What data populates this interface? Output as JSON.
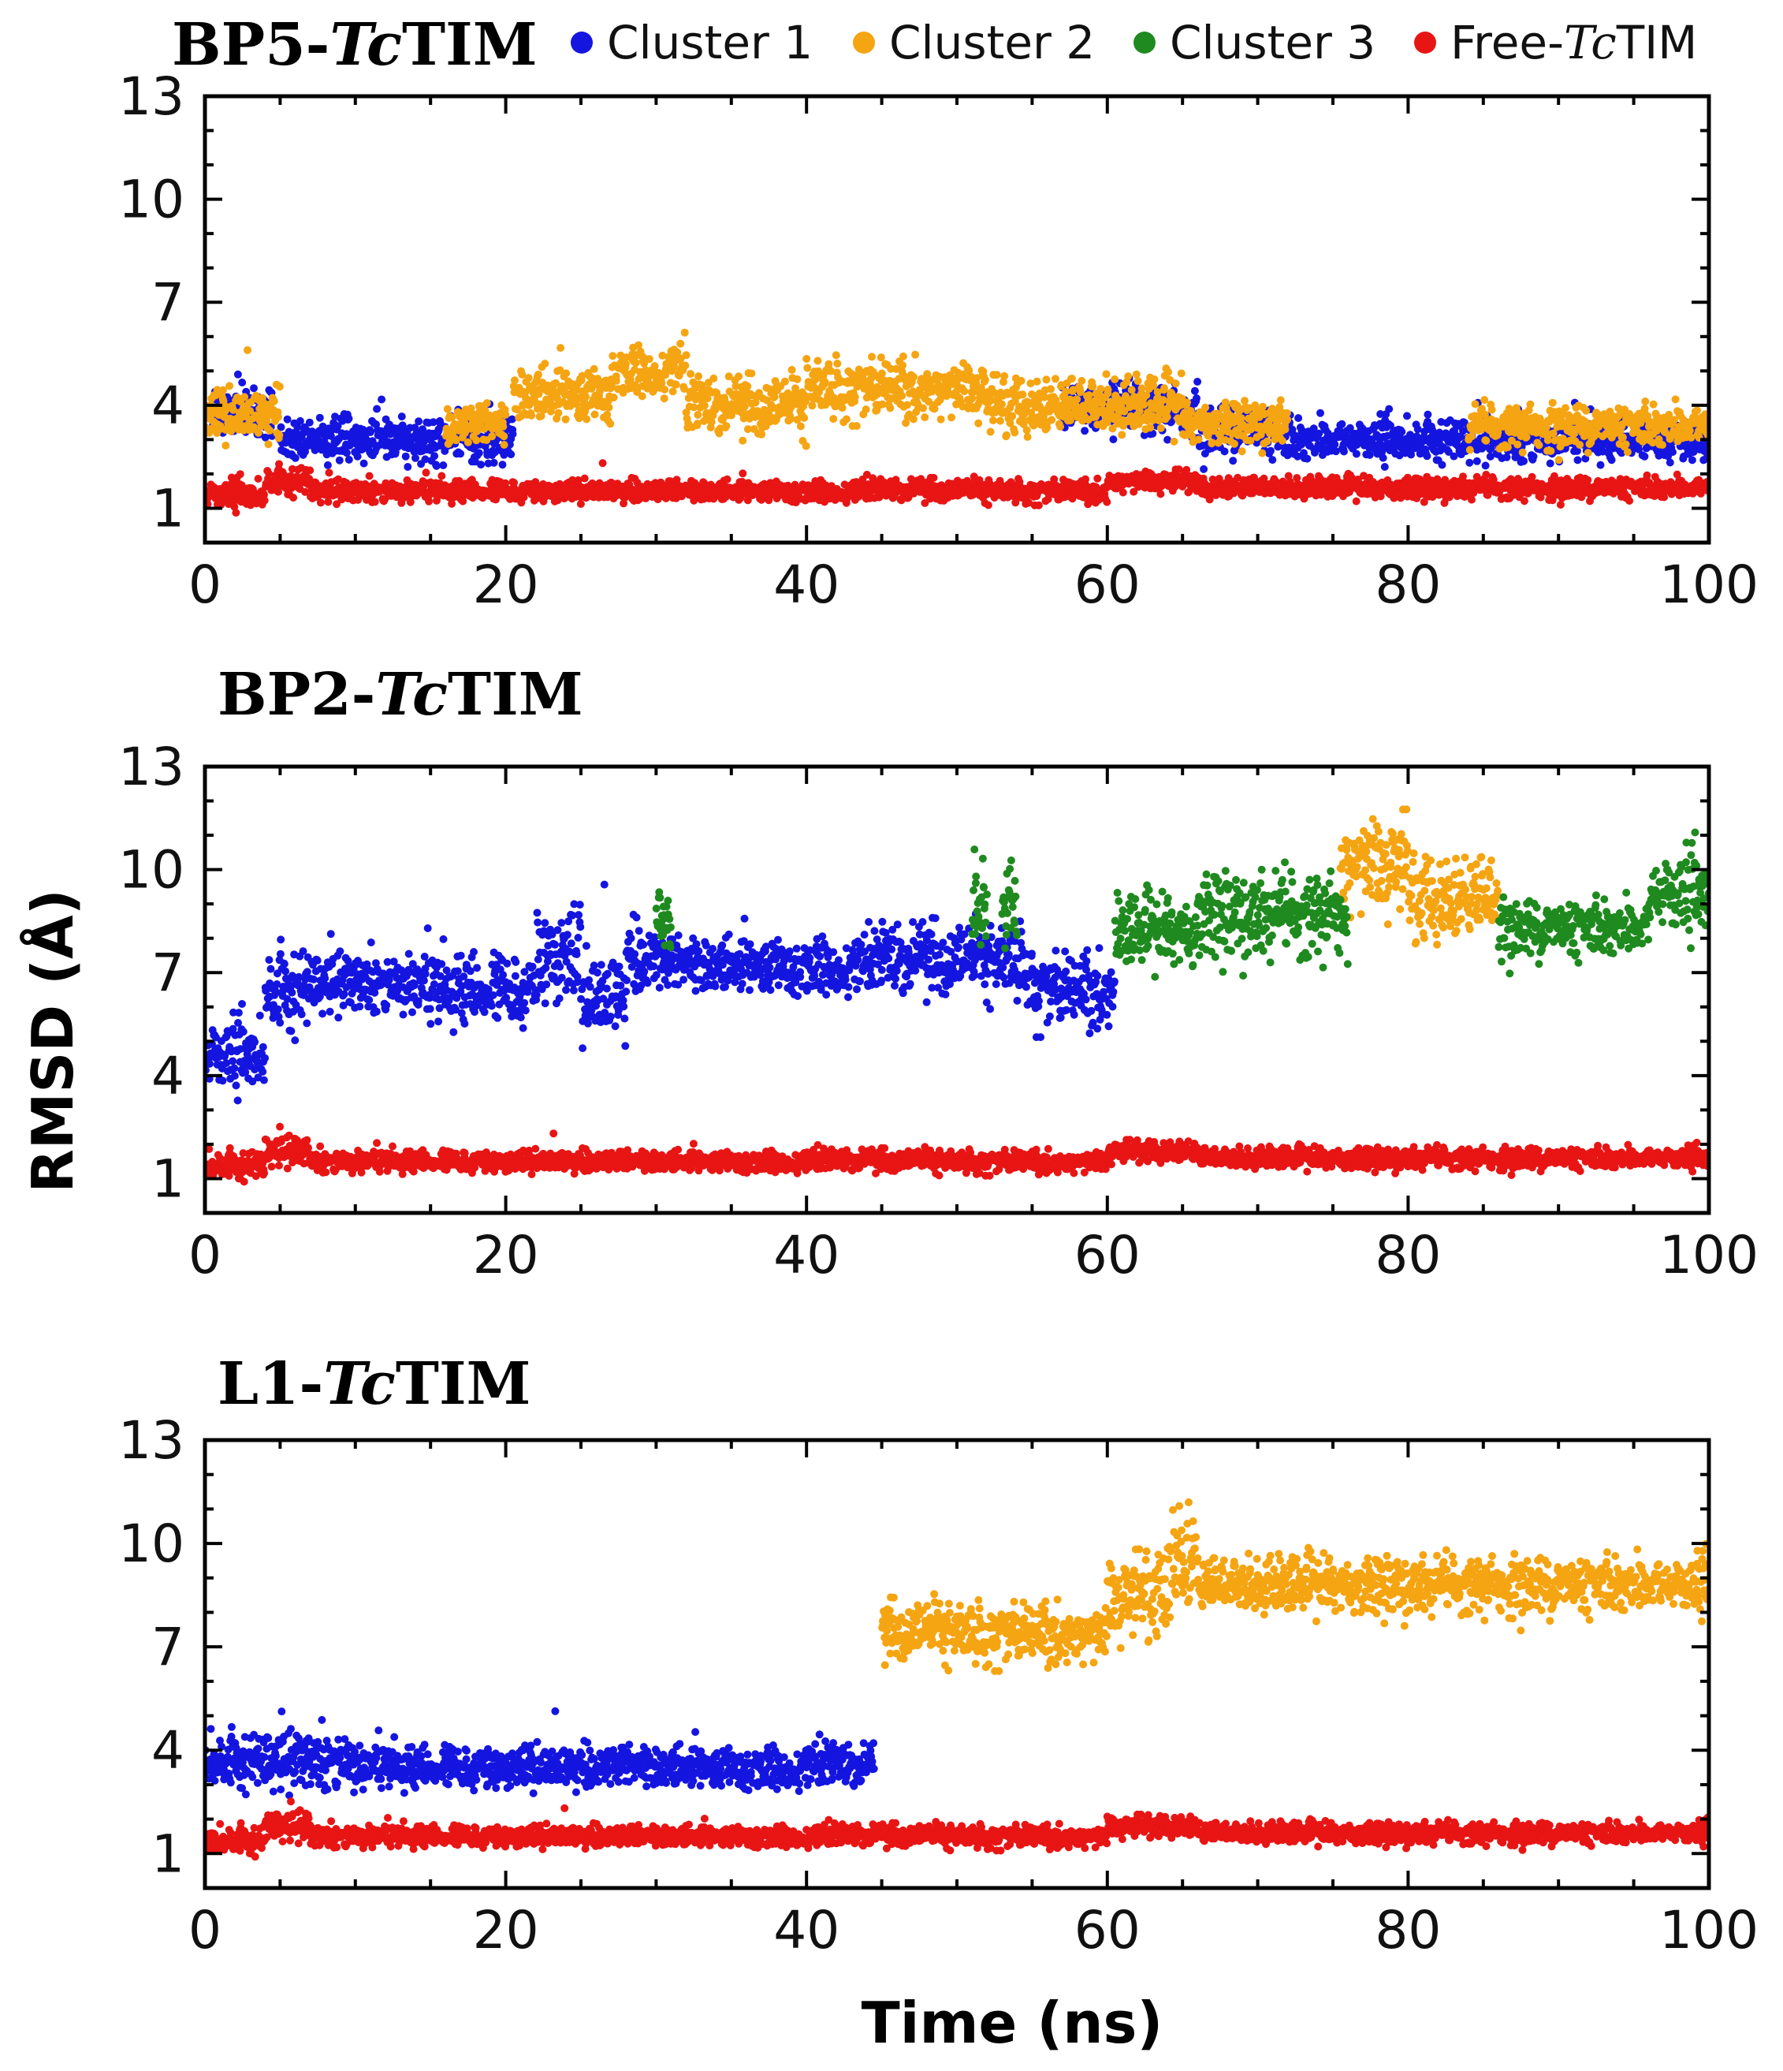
{
  "figure": {
    "ylabel": "RMSD (Å)",
    "xlabel": "Time (ns)",
    "legend": [
      {
        "label": "Cluster 1",
        "color": "#1515e0"
      },
      {
        "label": "Cluster 2",
        "color": "#f5a412"
      },
      {
        "label": "Cluster 3",
        "color": "#1f8a1f"
      },
      {
        "label": "Free-",
        "label_italic": "Tc",
        "label_suffix": "TIM",
        "color": "#e81515"
      }
    ]
  },
  "chart_data": [
    {
      "type": "scatter",
      "title_prefix": "BP5-",
      "title_italic": "Tc",
      "title_suffix": "TIM",
      "xlim": [
        0,
        100
      ],
      "ylim": [
        0,
        13
      ],
      "xticks": [
        0,
        20,
        40,
        60,
        80,
        100
      ],
      "yticks": [
        1,
        4,
        7,
        10,
        13
      ],
      "series": [
        {
          "name": "Cluster 1",
          "color": "#1515e0",
          "segments": [
            [
              0.5,
              4.5,
              3.8,
              0.35
            ],
            [
              5,
              20.5,
              3.0,
              0.3
            ],
            [
              57,
              66,
              3.9,
              0.35
            ],
            [
              66,
              71,
              3.3,
              0.35
            ],
            [
              71,
              100,
              3.0,
              0.3
            ]
          ]
        },
        {
          "name": "Cluster 2",
          "color": "#f5a412",
          "segments": [
            [
              0,
              5,
              3.7,
              0.35
            ],
            [
              16,
              20,
              3.4,
              0.3
            ],
            [
              20.5,
              27,
              4.3,
              0.4
            ],
            [
              27,
              32,
              5.0,
              0.35
            ],
            [
              32,
              40,
              3.9,
              0.4
            ],
            [
              40,
              52,
              4.5,
              0.4
            ],
            [
              52,
              65,
              4.0,
              0.4
            ],
            [
              65,
              72,
              3.5,
              0.3
            ],
            [
              84,
              100,
              3.4,
              0.3
            ]
          ]
        },
        {
          "name": "Cluster 3",
          "color": "#1f8a1f",
          "segments": []
        },
        {
          "name": "Free-TcTIM",
          "color": "#e81515",
          "segments": [
            [
              0,
              4,
              1.4,
              0.2
            ],
            [
              4,
              7,
              1.8,
              0.2
            ],
            [
              7,
              60,
              1.5,
              0.15
            ],
            [
              60,
              66,
              1.8,
              0.15
            ],
            [
              66,
              100,
              1.6,
              0.15
            ]
          ]
        }
      ]
    },
    {
      "type": "scatter",
      "title_prefix": "BP2-",
      "title_italic": "Tc",
      "title_suffix": "TIM",
      "xlim": [
        0,
        100
      ],
      "ylim": [
        0,
        13
      ],
      "xticks": [
        0,
        20,
        40,
        60,
        80,
        100
      ],
      "yticks": [
        1,
        4,
        7,
        10,
        13
      ],
      "series": [
        {
          "name": "Cluster 1",
          "color": "#1515e0",
          "segments": [
            [
              0,
              4,
              4.6,
              0.5
            ],
            [
              4,
              7,
              6.5,
              0.6
            ],
            [
              7,
              14,
              6.7,
              0.4
            ],
            [
              14,
              22,
              6.5,
              0.5
            ],
            [
              22,
              25,
              7.5,
              0.7
            ],
            [
              25,
              28,
              6.3,
              0.6
            ],
            [
              28,
              30,
              7.4,
              0.5
            ],
            [
              30,
              45,
              7.2,
              0.4
            ],
            [
              45,
              55,
              7.3,
              0.5
            ],
            [
              55,
              60.5,
              6.5,
              0.5
            ]
          ]
        },
        {
          "name": "Cluster 2",
          "color": "#f5a412",
          "segments": [
            [
              75.5,
              80,
              10.2,
              0.7
            ],
            [
              80,
              86,
              9.2,
              0.6
            ]
          ]
        },
        {
          "name": "Cluster 3",
          "color": "#1f8a1f",
          "segments": [
            [
              30,
              31,
              8.5,
              0.5
            ],
            [
              51,
              52,
              9.0,
              0.7
            ],
            [
              53,
              54,
              9.0,
              0.6
            ],
            [
              60.5,
              66,
              8.2,
              0.5
            ],
            [
              66,
              76,
              8.7,
              0.6
            ],
            [
              86,
              96,
              8.3,
              0.4
            ],
            [
              96,
              100,
              9.3,
              0.6
            ]
          ]
        },
        {
          "name": "Free-TcTIM",
          "color": "#e81515",
          "segments": [
            [
              0,
              4,
              1.4,
              0.2
            ],
            [
              4,
              7,
              1.8,
              0.2
            ],
            [
              7,
              60,
              1.5,
              0.15
            ],
            [
              60,
              66,
              1.8,
              0.15
            ],
            [
              66,
              100,
              1.6,
              0.15
            ]
          ]
        }
      ]
    },
    {
      "type": "scatter",
      "title_prefix": "L1-",
      "title_italic": "Tc",
      "title_suffix": "TIM",
      "xlim": [
        0,
        100
      ],
      "ylim": [
        0,
        13
      ],
      "xticks": [
        0,
        20,
        40,
        60,
        80,
        100
      ],
      "yticks": [
        1,
        4,
        7,
        10,
        13
      ],
      "series": [
        {
          "name": "Cluster 1",
          "color": "#1515e0",
          "segments": [
            [
              0,
              10,
              3.7,
              0.4
            ],
            [
              10,
              44.5,
              3.5,
              0.3
            ]
          ]
        },
        {
          "name": "Cluster 2",
          "color": "#f5a412",
          "segments": [
            [
              45,
              60,
              7.4,
              0.4
            ],
            [
              60,
              64,
              8.5,
              0.6
            ],
            [
              64,
              66,
              9.7,
              0.8
            ],
            [
              66,
              100,
              8.8,
              0.4
            ]
          ]
        },
        {
          "name": "Cluster 3",
          "color": "#1f8a1f",
          "segments": []
        },
        {
          "name": "Free-TcTIM",
          "color": "#e81515",
          "segments": [
            [
              0,
              4,
              1.4,
              0.2
            ],
            [
              4,
              7,
              1.8,
              0.2
            ],
            [
              7,
              60,
              1.5,
              0.15
            ],
            [
              60,
              66,
              1.8,
              0.15
            ],
            [
              66,
              100,
              1.6,
              0.15
            ]
          ]
        }
      ]
    }
  ]
}
